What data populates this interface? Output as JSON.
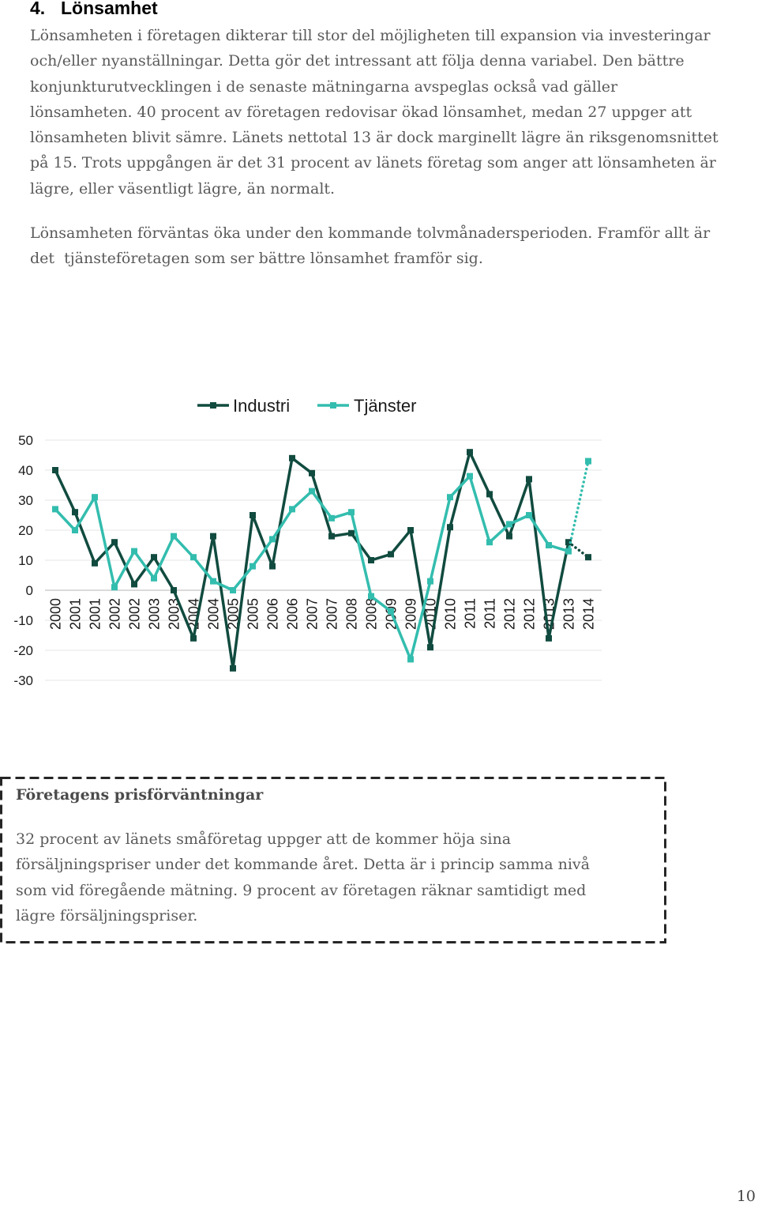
{
  "section": {
    "number": "4.",
    "title": "Lönsamhet",
    "paragraphs": [
      [
        "Lönsamheten i företagen dikterar till stor del möjligheten till expansion via investeringar",
        "och/eller nyanställningar. Detta gör det intressant att följa denna variabel. Den bättre",
        "konjunkturutvecklingen i de senaste mätningarna avspeglas också vad gäller",
        "lönsamheten. 40 procent av företagen redovisar ökad lönsamhet, medan 27 uppger att",
        "lönsamheten blivit sämre. Länets nettotal 13 är dock marginellt lägre än riksgenomsnittet",
        "på 15. Trots uppgången är det 31 procent av länets företag som anger att lönsamheten är",
        "lägre, eller väsentligt lägre, än normalt."
      ],
      [
        "Lönsamheten förväntas öka under den kommande tolvmånadersperioden. Framför allt är",
        "det  tjänsteföretagen som ser bättre lönsamhet framför sig."
      ]
    ]
  },
  "chart_data": {
    "type": "line",
    "x": [
      "2000",
      "2001",
      "2001",
      "2002",
      "2002",
      "2003",
      "2003",
      "2004",
      "2004",
      "2005",
      "2005",
      "2006",
      "2006",
      "2007",
      "2007",
      "2008",
      "2008",
      "2009",
      "2009",
      "2010",
      "2010",
      "2011",
      "2011",
      "2012",
      "2012",
      "2013",
      "2013",
      "2014"
    ],
    "series": [
      {
        "name": "Industri",
        "color": "#114b3f",
        "last_segment_style": "dotted",
        "values": [
          40,
          26,
          9,
          16,
          2,
          11,
          0,
          -16,
          18,
          -26,
          25,
          8,
          44,
          39,
          18,
          19,
          10,
          12,
          20,
          -19,
          21,
          46,
          32,
          18,
          37,
          -16,
          16,
          11
        ]
      },
      {
        "name": "Tjänster",
        "color": "#33bdae",
        "last_segment_style": "dotted",
        "values": [
          27,
          20,
          31,
          1,
          13,
          4,
          18,
          11,
          3,
          0,
          8,
          17,
          27,
          33,
          24,
          26,
          -2,
          -7,
          -23,
          3,
          31,
          38,
          16,
          22,
          25,
          15,
          13,
          43
        ]
      }
    ],
    "yticks": [
      50,
      40,
      30,
      20,
      10,
      0,
      -10,
      -20,
      -30
    ],
    "ylim": [
      -30,
      50
    ],
    "grid": true,
    "legend": "top"
  },
  "infobox": {
    "title": "Företagens prisförväntningar",
    "lines": [
      "32 procent av länets småföretag uppger att de kommer höja sina",
      "försäljningspriser under det kommande året. Detta är i princip samma nivå",
      "som vid föregående mätning. 9 procent av företagen räknar samtidigt med",
      "lägre försäljningspriser."
    ]
  },
  "page_number": "10"
}
